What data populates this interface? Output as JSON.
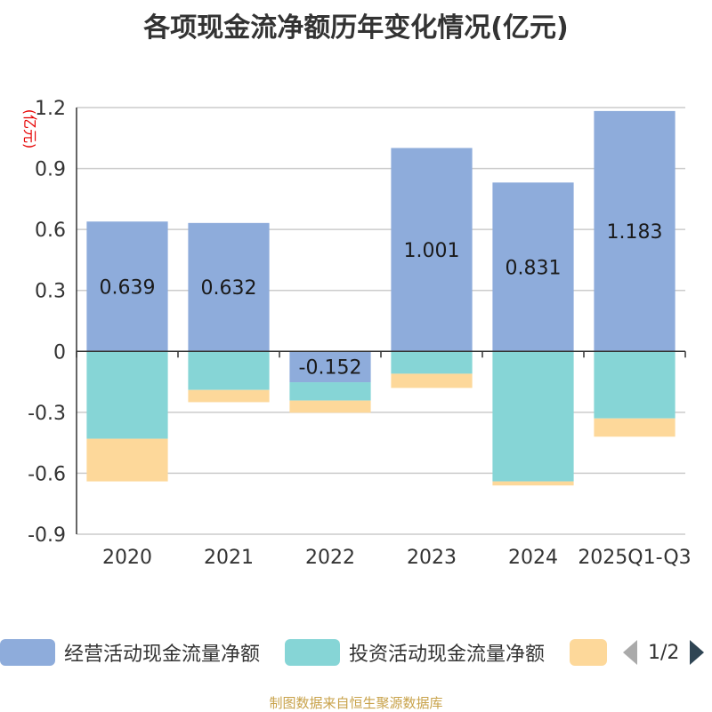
{
  "chart_data": {
    "type": "bar",
    "stacked": true,
    "title": "各项现金流净额历年变化情况(亿元)",
    "unit_label": "(亿元)",
    "categories": [
      "2020",
      "2021",
      "2022",
      "2023",
      "2024",
      "2025Q1-Q3"
    ],
    "series": [
      {
        "name": "经营活动现金流量净额",
        "color": "#8eacdb",
        "values": [
          0.639,
          0.632,
          -0.152,
          1.001,
          0.831,
          1.183
        ],
        "labels": [
          "0.639",
          "0.632",
          "-0.152",
          "1.001",
          "0.831",
          "1.183"
        ]
      },
      {
        "name": "投资活动现金流量净额",
        "color": "#86d5d6",
        "values": [
          -0.43,
          -0.19,
          -0.09,
          -0.11,
          -0.64,
          -0.33
        ]
      },
      {
        "name": "",
        "color": "#fdd89a",
        "values": [
          -0.21,
          -0.06,
          -0.06,
          -0.07,
          -0.02,
          -0.09
        ]
      }
    ],
    "ylim": [
      -0.9,
      1.2
    ],
    "yticks": [
      1.2,
      0.9,
      0.6,
      0.3,
      0,
      -0.3,
      -0.6,
      -0.9
    ],
    "ytick_labels": [
      "1.2",
      "0.9",
      "0.6",
      "0.3",
      "0",
      "-0.3",
      "-0.6",
      "-0.9"
    ],
    "grid": true,
    "legend_position": "bottom"
  },
  "legend": {
    "pager": "1/2"
  },
  "source": "制图数据来自恒生聚源数据库"
}
